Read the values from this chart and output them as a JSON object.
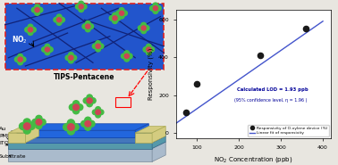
{
  "scatter_x": [
    75,
    100,
    250,
    360
  ],
  "scatter_y": [
    110,
    260,
    410,
    550
  ],
  "linear_fit_x": [
    50,
    400
  ],
  "linear_fit_y": [
    50,
    590
  ],
  "xlim": [
    50,
    420
  ],
  "ylim": [
    -30,
    650
  ],
  "xticks": [
    100,
    200,
    300,
    400
  ],
  "yticks": [
    0,
    200,
    400,
    600
  ],
  "xlabel": "NO$_2$ Concentration (ppb)",
  "ylabel": "Responsivity (%)",
  "scatter_color": "#1a1a1a",
  "line_color": "#4455cc",
  "annotation_text1": "Calculated LOD = 1.93 ppb",
  "annotation_text2": "(95% confidence level, η = 1.96 )",
  "legend_scatter": "Responsivity of O-xylene device (%)",
  "legend_line": "Linear fit of responsivity",
  "bg_color": "#e8e6e0",
  "inset_bg": "#2255cc",
  "device_active_color": "#2266dd",
  "au_color": "#d4cc80",
  "pmma_color": "#4488cc",
  "ito_color": "#5599aa",
  "substrate_color": "#aabbcc",
  "mol_green": "#44bb44",
  "mol_red": "#cc4455"
}
